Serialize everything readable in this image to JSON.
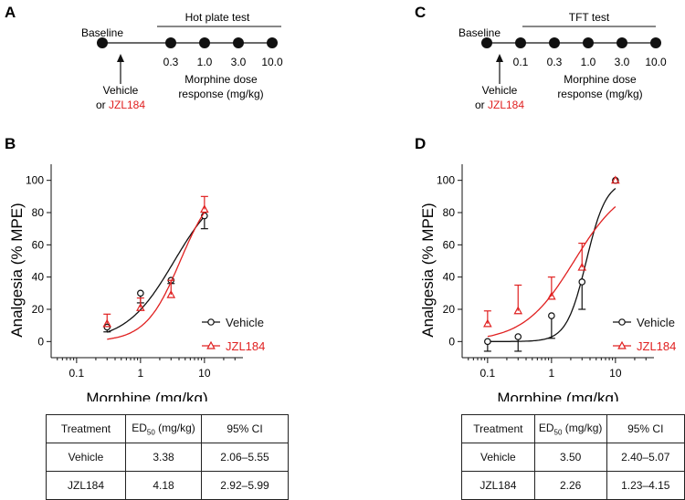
{
  "panels": {
    "A": {
      "letter": "A",
      "baseline_label": "Baseline",
      "test_label": "Hot plate test",
      "doses": [
        "0.3",
        "1.0",
        "3.0",
        "10.0"
      ],
      "dose_caption_line1": "Morphine dose",
      "dose_caption_line2": "response (mg/kg)",
      "vehicle_line1": "Vehicle",
      "vehicle_or": "or ",
      "jzl": "JZL184"
    },
    "C": {
      "letter": "C",
      "baseline_label": "Baseline",
      "test_label": "TFT test",
      "doses": [
        "0.1",
        "0.3",
        "1.0",
        "3.0",
        "10.0"
      ],
      "dose_caption_line1": "Morphine dose",
      "dose_caption_line2": "response (mg/kg)",
      "vehicle_line1": "Vehicle",
      "vehicle_or": "or ",
      "jzl": "JZL184"
    },
    "B": {
      "letter": "B"
    },
    "D": {
      "letter": "D"
    }
  },
  "colors": {
    "vehicle": "#111111",
    "jzl184": "#e02020"
  },
  "chart_data": [
    {
      "id": "B",
      "type": "scatter",
      "xlabel": "Morphine (mg/kg)",
      "ylabel": "Analgesia (% MPE)",
      "xscale": "log",
      "xlim": [
        0.04,
        40
      ],
      "ylim": [
        -10,
        110
      ],
      "xticks": [
        0.1,
        1,
        10
      ],
      "xtick_labels": [
        "0.1",
        "1",
        "10"
      ],
      "yticks": [
        0,
        20,
        40,
        60,
        80,
        100
      ],
      "ytick_labels": [
        "0",
        "20",
        "40",
        "60",
        "80",
        "100"
      ],
      "legend_position": "right",
      "series": [
        {
          "name": "Vehicle",
          "marker": "circle",
          "x": [
            0.3,
            1,
            3,
            10
          ],
          "y": [
            9,
            30,
            38,
            78
          ],
          "err_low": [
            6,
            24,
            36,
            70
          ],
          "err_high": [
            9,
            30,
            38,
            78
          ],
          "fit_ed50": 3.38,
          "fit_slope": 1.15
        },
        {
          "name": "JZL184",
          "marker": "triangle",
          "x": [
            0.3,
            1,
            3,
            10
          ],
          "y": [
            11,
            21,
            29,
            82
          ],
          "err_low": [
            11,
            21,
            29,
            82
          ],
          "err_high": [
            17,
            27,
            38,
            90
          ],
          "fit_ed50": 4.18,
          "fit_slope": 1.6
        }
      ]
    },
    {
      "id": "D",
      "type": "scatter",
      "xlabel": "Morphine (mg/kg)",
      "ylabel": "Analgesia (% MPE)",
      "xscale": "log",
      "xlim": [
        0.04,
        40
      ],
      "ylim": [
        -10,
        110
      ],
      "xticks": [
        0.1,
        1,
        10
      ],
      "xtick_labels": [
        "0.1",
        "1",
        "10"
      ],
      "yticks": [
        0,
        20,
        40,
        60,
        80,
        100
      ],
      "ytick_labels": [
        "0",
        "20",
        "40",
        "60",
        "80",
        "100"
      ],
      "legend_position": "right",
      "series": [
        {
          "name": "Vehicle",
          "marker": "circle",
          "x": [
            0.1,
            0.3,
            1,
            3,
            10
          ],
          "y": [
            0,
            3,
            16,
            37,
            100
          ],
          "err_low": [
            -6,
            -6,
            2,
            20,
            100
          ],
          "err_high": [
            0,
            3,
            16,
            37,
            100
          ],
          "fit_ed50": 3.5,
          "fit_slope": 2.8
        },
        {
          "name": "JZL184",
          "marker": "triangle",
          "x": [
            0.1,
            0.3,
            1,
            3,
            10
          ],
          "y": [
            11,
            19,
            28,
            46,
            100
          ],
          "err_low": [
            11,
            19,
            28,
            46,
            100
          ],
          "err_high": [
            19,
            35,
            40,
            61,
            100
          ],
          "fit_ed50": 2.26,
          "fit_slope": 1.1
        }
      ]
    }
  ],
  "tables": {
    "B": {
      "headers": [
        "Treatment",
        "ED",
        "50",
        " (mg/kg)",
        "95% CI"
      ],
      "rows": [
        [
          "Vehicle",
          "3.38",
          "2.06–5.55"
        ],
        [
          "JZL184",
          "4.18",
          "2.92–5.99"
        ]
      ]
    },
    "D": {
      "headers": [
        "Treatment",
        "ED",
        "50",
        " (mg/kg)",
        "95% CI"
      ],
      "rows": [
        [
          "Vehicle",
          "3.50",
          "2.40–5.07"
        ],
        [
          "JZL184",
          "2.26",
          "1.23–4.15"
        ]
      ]
    }
  }
}
